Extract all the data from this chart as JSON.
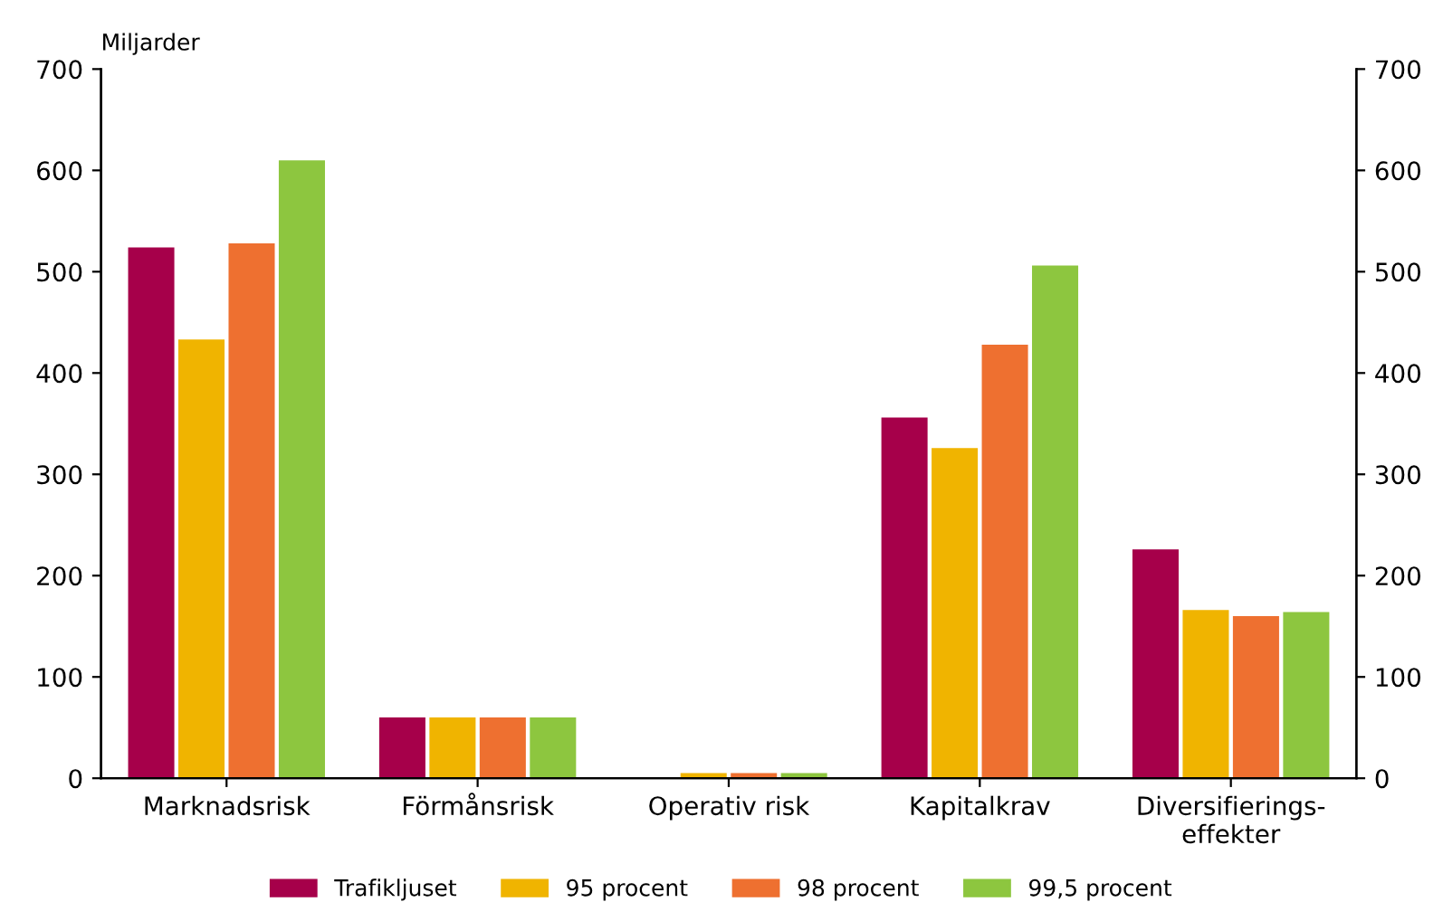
{
  "chart_data": {
    "type": "bar",
    "ylabel": "Miljarder",
    "categories": [
      "Marknadsrisk",
      "Förmånsrisk",
      "Operativ risk",
      "Kapitalkrav",
      "Diversifierings-\neffekter"
    ],
    "series": [
      {
        "name": "Trafikljuset",
        "color": "#a6004a",
        "values": [
          524,
          60,
          0,
          356,
          226
        ]
      },
      {
        "name": "95 procent",
        "color": "#f0b400",
        "values": [
          433,
          60,
          5,
          326,
          166
        ]
      },
      {
        "name": "98 procent",
        "color": "#ee7030",
        "values": [
          528,
          60,
          5,
          428,
          160
        ]
      },
      {
        "name": "99,5 procent",
        "color": "#8dc63f",
        "values": [
          610,
          60,
          5,
          506,
          164
        ]
      }
    ],
    "ylim": [
      0,
      700
    ],
    "yticks": [
      0,
      100,
      200,
      300,
      400,
      500,
      600,
      700
    ],
    "y2lim": [
      0,
      700
    ],
    "y2ticks": [
      0,
      100,
      200,
      300,
      400,
      500,
      600,
      700
    ],
    "grid": false,
    "legend": "bottom"
  }
}
